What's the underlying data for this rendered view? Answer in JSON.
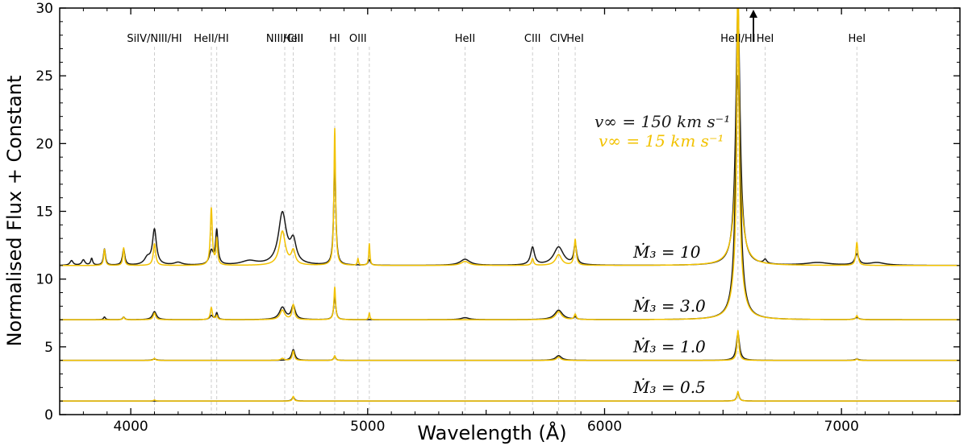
{
  "chart_data": {
    "type": "line",
    "title": "",
    "xlabel": "Wavelength (Å)",
    "ylabel": "Normalised Flux + Constant",
    "xlim": [
      3700,
      7500
    ],
    "ylim": [
      0,
      30
    ],
    "x_ticks": [
      4000,
      5000,
      6000,
      7000
    ],
    "y_ticks": [
      0,
      5,
      10,
      15,
      20,
      25,
      30
    ],
    "legend": [
      {
        "text": "v∞ = 150 km s⁻¹",
        "color": "#1a1a1a"
      },
      {
        "text": "v∞ = 15 km s⁻¹",
        "color": "#f2c200"
      }
    ],
    "line_labels": [
      {
        "text": "SiIV/NIII/HI",
        "x": 4100
      },
      {
        "text": "HeII/HI",
        "x": 4340
      },
      {
        "text": "NIII/CIII",
        "x": 4650
      },
      {
        "text": "HeII",
        "x": 4686
      },
      {
        "text": "HI",
        "x": 4861
      },
      {
        "text": "OIII",
        "x": 4959
      },
      {
        "text": "HeII",
        "x": 5411
      },
      {
        "text": "CIII",
        "x": 5696
      },
      {
        "text": "CIV",
        "x": 5806
      },
      {
        "text": "HeI",
        "x": 5876
      },
      {
        "text": "HeII/HI",
        "x": 6563
      },
      {
        "text": "HeI",
        "x": 6678
      },
      {
        "text": "HeI",
        "x": 7065
      }
    ],
    "guide_lines_x": [
      4100,
      4340,
      4363,
      4650,
      4686,
      4861,
      4959,
      5007,
      5411,
      5696,
      5806,
      5876,
      6563,
      6678,
      7065
    ],
    "series_labels": [
      {
        "text": "Ṁ₃ = 10",
        "offset": 11
      },
      {
        "text": "Ṁ₃ = 3.0",
        "offset": 7
      },
      {
        "text": "Ṁ₃ = 1.0",
        "offset": 4
      },
      {
        "text": "Ṁ₃ = 0.5",
        "offset": 1
      }
    ],
    "series": [
      {
        "name": "Ṁ₃ = 10, v∞ = 150 km s⁻¹",
        "offset": 11,
        "color": "#1a1a1a",
        "lines": [
          [
            3750,
            0.35,
            8
          ],
          [
            3800,
            0.4,
            8
          ],
          [
            3835,
            0.5,
            5
          ],
          [
            3889,
            1.2,
            5
          ],
          [
            3970,
            1.2,
            6
          ],
          [
            4070,
            0.5,
            15
          ],
          [
            4100,
            2.6,
            10
          ],
          [
            4200,
            0.2,
            20
          ],
          [
            4340,
            1.0,
            10
          ],
          [
            4363,
            2.5,
            6
          ],
          [
            4500,
            0.3,
            40
          ],
          [
            4640,
            3.8,
            20
          ],
          [
            4686,
            1.6,
            15
          ],
          [
            4861,
            8.0,
            5
          ],
          [
            5007,
            0.4,
            6
          ],
          [
            5411,
            0.45,
            25
          ],
          [
            5696,
            1.3,
            10
          ],
          [
            5806,
            1.35,
            25
          ],
          [
            5876,
            1.5,
            7
          ],
          [
            6563,
            19,
            11
          ],
          [
            6678,
            0.3,
            8
          ],
          [
            6900,
            0.2,
            60
          ],
          [
            7065,
            0.8,
            10
          ],
          [
            7150,
            0.2,
            40
          ]
        ],
        "clip": 30
      },
      {
        "name": "Ṁ₃ = 10, v∞ = 15 km s⁻¹",
        "offset": 11,
        "color": "#f2c200",
        "lines": [
          [
            3889,
            1.2,
            4
          ],
          [
            3970,
            1.3,
            4
          ],
          [
            4100,
            1.6,
            6
          ],
          [
            4340,
            4.2,
            5
          ],
          [
            4363,
            1.9,
            4
          ],
          [
            4640,
            2.5,
            15
          ],
          [
            4686,
            1.0,
            10
          ],
          [
            4861,
            10.1,
            4
          ],
          [
            4959,
            0.5,
            3
          ],
          [
            5007,
            1.6,
            3
          ],
          [
            5411,
            0.3,
            20
          ],
          [
            5696,
            0.5,
            5
          ],
          [
            5806,
            0.8,
            15
          ],
          [
            5876,
            1.9,
            5
          ],
          [
            6563,
            19,
            4
          ],
          [
            6563,
            6.0,
            20
          ],
          [
            7065,
            1.7,
            5
          ]
        ],
        "clip": 30
      },
      {
        "name": "Ṁ₃ = 3.0, v∞ = 150 km s⁻¹",
        "offset": 7,
        "color": "#1a1a1a",
        "lines": [
          [
            3889,
            0.2,
            5
          ],
          [
            3970,
            0.2,
            5
          ],
          [
            4100,
            0.6,
            10
          ],
          [
            4340,
            0.3,
            8
          ],
          [
            4363,
            0.5,
            5
          ],
          [
            4640,
            0.9,
            15
          ],
          [
            4686,
            1.0,
            10
          ],
          [
            4861,
            1.8,
            5
          ],
          [
            5411,
            0.15,
            20
          ],
          [
            5806,
            0.7,
            20
          ],
          [
            5876,
            0.2,
            5
          ],
          [
            6563,
            18,
            12
          ],
          [
            7065,
            0.15,
            10
          ]
        ],
        "clip": 30
      },
      {
        "name": "Ṁ₃ = 3.0, v∞ = 15 km s⁻¹",
        "offset": 7,
        "color": "#f2c200",
        "lines": [
          [
            3970,
            0.2,
            4
          ],
          [
            4100,
            0.5,
            6
          ],
          [
            4340,
            0.9,
            5
          ],
          [
            4363,
            0.3,
            4
          ],
          [
            4640,
            0.7,
            12
          ],
          [
            4686,
            1.1,
            6
          ],
          [
            4861,
            2.4,
            4
          ],
          [
            5007,
            0.5,
            3
          ],
          [
            5806,
            0.6,
            15
          ],
          [
            5876,
            0.4,
            5
          ],
          [
            6563,
            19,
            5
          ],
          [
            6563,
            5.0,
            20
          ],
          [
            7065,
            0.3,
            5
          ]
        ],
        "clip": 30
      },
      {
        "name": "Ṁ₃ = 1.0, v∞ = 150 km s⁻¹",
        "offset": 4,
        "color": "#1a1a1a",
        "lines": [
          [
            4100,
            0.1,
            10
          ],
          [
            4686,
            0.8,
            8
          ],
          [
            4861,
            0.3,
            5
          ],
          [
            5806,
            0.35,
            15
          ],
          [
            6563,
            2.0,
            8
          ],
          [
            7065,
            0.1,
            10
          ]
        ],
        "clip": 30
      },
      {
        "name": "Ṁ₃ = 1.0, v∞ = 15 km s⁻¹",
        "offset": 4,
        "color": "#f2c200",
        "lines": [
          [
            4100,
            0.15,
            5
          ],
          [
            4640,
            0.15,
            8
          ],
          [
            4686,
            0.7,
            5
          ],
          [
            4861,
            0.35,
            4
          ],
          [
            5806,
            0.25,
            10
          ],
          [
            6563,
            2.2,
            5
          ],
          [
            7065,
            0.1,
            5
          ]
        ],
        "clip": 30
      },
      {
        "name": "Ṁ₃ = 0.5, v∞ = 150 km s⁻¹",
        "offset": 1,
        "color": "#1a1a1a",
        "lines": [
          [
            4686,
            0.3,
            6
          ],
          [
            6563,
            0.6,
            6
          ]
        ],
        "clip": 30
      },
      {
        "name": "Ṁ₃ = 0.5, v∞ = 15 km s⁻¹",
        "offset": 1,
        "color": "#f2c200",
        "lines": [
          [
            4100,
            0.08,
            5
          ],
          [
            4686,
            0.35,
            4
          ],
          [
            6563,
            0.7,
            5
          ]
        ],
        "clip": 30
      }
    ]
  }
}
